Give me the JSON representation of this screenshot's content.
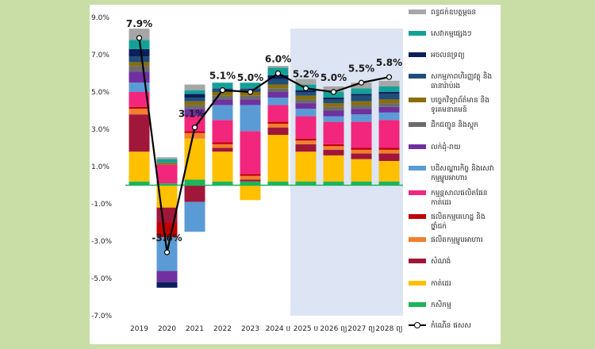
{
  "chart_data": {
    "type": "bar",
    "subtype": "stacked-bar-with-line",
    "categories": [
      "2019",
      "2020",
      "2021",
      "2022",
      "2023",
      "2024 ប",
      "2025 ប",
      "2026 ព្យ",
      "2027 ព្យ",
      "2028 ព្យ"
    ],
    "projection_start_category": "2025 ប",
    "ylim": [
      -7.0,
      9.0
    ],
    "yticks": [
      "9.0%",
      "7.0%",
      "5.0%",
      "3.0%",
      "1.0%",
      "-1.0%",
      "-3.0%",
      "-5.0%",
      "-7.0%"
    ],
    "ytick_values": [
      9,
      7,
      5,
      3,
      1,
      -1,
      -3,
      -5,
      -7
    ],
    "series": [
      {
        "name": "កសិកម្ម",
        "color": "#1fb35a",
        "values": [
          0.2,
          0.1,
          0.3,
          0.2,
          0.2,
          0.2,
          0.2,
          0.2,
          0.2,
          0.2
        ]
      },
      {
        "name": "កាត់ដេរ",
        "color": "#ffc000",
        "values": [
          1.6,
          -1.2,
          2.2,
          1.6,
          -0.8,
          2.5,
          1.6,
          1.4,
          1.2,
          1.1
        ]
      },
      {
        "name": "សំណង់",
        "color": "#a0173a",
        "values": [
          2.0,
          -0.8,
          -0.9,
          0.2,
          0.1,
          0.4,
          0.4,
          0.3,
          0.3,
          0.4
        ]
      },
      {
        "name": "ផលិតកម្មម្ហូបអាហារ",
        "color": "#f08030",
        "values": [
          0.3,
          0.0,
          0.3,
          0.2,
          0.2,
          0.2,
          0.2,
          0.2,
          0.2,
          0.2
        ]
      },
      {
        "name": "ផលិតកម្មគេហដ្ឋ និងថ្នាំជក់",
        "color": "#c00000",
        "values": [
          0.1,
          -0.8,
          0.1,
          0.1,
          0.1,
          0.1,
          0.1,
          0.1,
          0.1,
          0.1
        ]
      },
      {
        "name": "កម្មន្តសាលផលិតផែនកាត់ដេរ",
        "color": "#f2267c",
        "values": [
          0.8,
          1.0,
          0.8,
          1.2,
          2.3,
          0.9,
          1.2,
          1.2,
          1.4,
          1.5
        ]
      },
      {
        "name": "បដិសណ្ឋារកិច្ច និងសេវាកម្មម្ហូបអាហារ",
        "color": "#5b9bd5",
        "values": [
          0.5,
          -1.8,
          -1.6,
          0.8,
          1.4,
          0.4,
          0.4,
          0.3,
          0.4,
          0.4
        ]
      },
      {
        "name": "លក់ដុំ-រាយ",
        "color": "#7030a0",
        "values": [
          0.6,
          -0.6,
          0.4,
          0.3,
          0.3,
          0.3,
          0.3,
          0.3,
          0.3,
          0.3
        ]
      },
      {
        "name": "ដឹកជញ្ជូន និងស្តុក",
        "color": "#6b6b6b",
        "values": [
          0.3,
          0.0,
          0.2,
          0.2,
          0.2,
          0.2,
          0.2,
          0.2,
          0.2,
          0.2
        ]
      },
      {
        "name": "បច្ចេកវិទ្យាព័ត៌មាន និងទូរគមនាគមន៍",
        "color": "#8b6d0a",
        "values": [
          0.2,
          0.1,
          0.2,
          0.2,
          0.2,
          0.2,
          0.2,
          0.2,
          0.2,
          0.2
        ]
      },
      {
        "name": "សកម្មភាពហិរញ្ញវត្ថុ និងធានារ៉ាប់រង",
        "color": "#1f4e79",
        "values": [
          0.3,
          0.0,
          0.2,
          0.2,
          0.2,
          0.3,
          0.2,
          0.2,
          0.3,
          0.3
        ]
      },
      {
        "name": "អចលនទ្រព្យ",
        "color": "#0b1f5c",
        "values": [
          0.4,
          -0.3,
          0.2,
          0.0,
          0.0,
          0.2,
          0.1,
          0.1,
          0.1,
          0.1
        ]
      },
      {
        "name": "សេវាកម្មផ្សេងៗ",
        "color": "#14a098",
        "values": [
          0.5,
          0.2,
          0.2,
          0.3,
          0.3,
          0.4,
          0.3,
          0.3,
          0.3,
          0.3
        ]
      },
      {
        "name": "ពន្ធជក់ឧបត្ថម្ភធន",
        "color": "#a6a6a6",
        "values": [
          0.6,
          0.1,
          0.3,
          0.0,
          0.0,
          0.1,
          0.3,
          0.3,
          0.3,
          0.3
        ]
      }
    ],
    "line": {
      "name": "កំណើន ផសស",
      "values": [
        7.9,
        -3.6,
        3.1,
        5.1,
        5.0,
        6.0,
        5.2,
        5.0,
        5.5,
        5.8
      ],
      "labels": [
        "7.9%",
        "-3.6%",
        "3.1%",
        "5.1%",
        "5.0%",
        "6.0%",
        "5.2%",
        "5.0%",
        "5.5%",
        "5.8%"
      ]
    },
    "legend_order": [
      "ពន្ធជក់ឧបត្ថម្ភធន",
      "សេវាកម្មផ្សេងៗ",
      "អចលនទ្រព្យ",
      "សកម្មភាពហិរញ្ញវត្ថុ និងធានារ៉ាប់រង",
      "បច្ចេកវិទ្យាព័ត៌មាន និងទូរគមនាគមន៍",
      "ដឹកជញ្ជូន និងស្តុក",
      "លក់ដុំ-រាយ",
      "បដិសណ្ឋារកិច្ច និងសេវាកម្មម្ហូបអាហារ",
      "កម្មន្តសាលផលិតផែនកាត់ដេរ",
      "ផលិតកម្មគេហដ្ឋ និងថ្នាំជក់",
      "ផលិតកម្មម្ហូបអាហារ",
      "សំណង់",
      "កាត់ដេរ",
      "កសិកម្ម",
      "កំណើន ផសស"
    ],
    "legend_position": "right",
    "projection_band_color": "#dde5f4"
  }
}
